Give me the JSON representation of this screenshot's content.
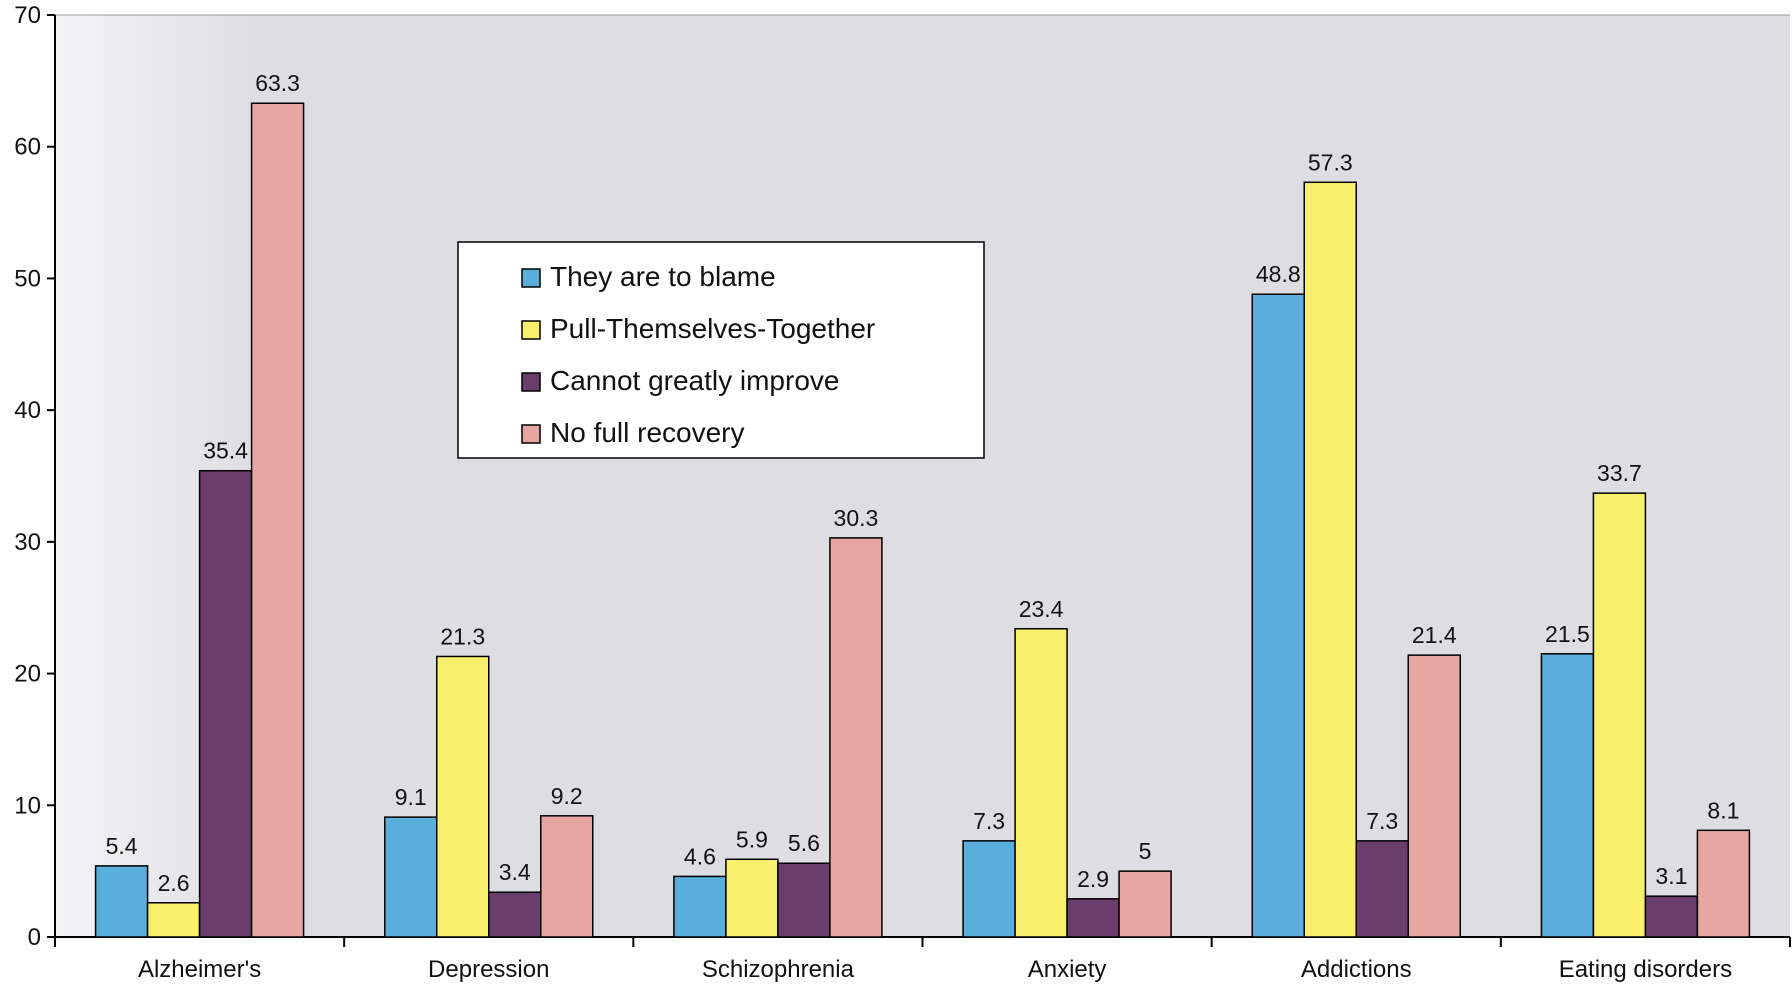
{
  "chart_data": {
    "type": "bar",
    "title": "",
    "xlabel": "",
    "ylabel": "",
    "ylim": [
      0,
      70
    ],
    "yticks": [
      0,
      10,
      20,
      30,
      40,
      50,
      60,
      70
    ],
    "grid": false,
    "legend_position": "upper-center",
    "categories": [
      "Alzheimer's",
      "Depression",
      "Schizophrenia",
      "Anxiety",
      "Addictions",
      "Eating disorders"
    ],
    "series": [
      {
        "name": "They are to blame",
        "color": "#5aaedc",
        "values": [
          5.4,
          9.1,
          4.6,
          7.3,
          48.8,
          21.5
        ]
      },
      {
        "name": "Pull-Themselves-Together",
        "color": "#f8f06c",
        "values": [
          2.6,
          21.3,
          5.9,
          23.4,
          57.3,
          33.7
        ]
      },
      {
        "name": "Cannot greatly improve",
        "color": "#6a3d6c",
        "values": [
          35.4,
          3.4,
          5.6,
          2.9,
          7.3,
          3.1
        ]
      },
      {
        "name": "No full recovery",
        "color": "#e8a6a2",
        "values": [
          63.3,
          9.2,
          30.3,
          5,
          21.4,
          8.1
        ]
      }
    ],
    "plot_background": "#dedee2"
  }
}
